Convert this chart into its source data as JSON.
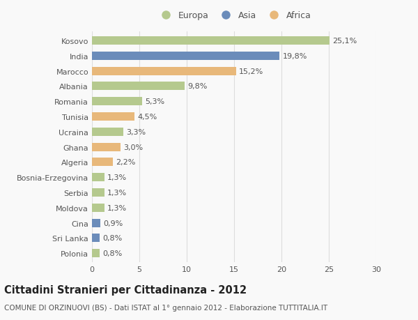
{
  "categories": [
    "Kosovo",
    "India",
    "Marocco",
    "Albania",
    "Romania",
    "Tunisia",
    "Ucraina",
    "Ghana",
    "Algeria",
    "Bosnia-Erzegovina",
    "Serbia",
    "Moldova",
    "Cina",
    "Sri Lanka",
    "Polonia"
  ],
  "values": [
    25.1,
    19.8,
    15.2,
    9.8,
    5.3,
    4.5,
    3.3,
    3.0,
    2.2,
    1.3,
    1.3,
    1.3,
    0.9,
    0.8,
    0.8
  ],
  "labels": [
    "25,1%",
    "19,8%",
    "15,2%",
    "9,8%",
    "5,3%",
    "4,5%",
    "3,3%",
    "3,0%",
    "2,2%",
    "1,3%",
    "1,3%",
    "1,3%",
    "0,9%",
    "0,8%",
    "0,8%"
  ],
  "continents": [
    "Europa",
    "Asia",
    "Africa",
    "Europa",
    "Europa",
    "Africa",
    "Europa",
    "Africa",
    "Africa",
    "Europa",
    "Europa",
    "Europa",
    "Asia",
    "Asia",
    "Europa"
  ],
  "colors": {
    "Europa": "#b5c98e",
    "Asia": "#6b8cba",
    "Africa": "#e8b87a"
  },
  "title_main": "Cittadini Stranieri per Cittadinanza - 2012",
  "title_sub": "COMUNE DI ORZINUOVI (BS) - Dati ISTAT al 1° gennaio 2012 - Elaborazione TUTTITALIA.IT",
  "xlim": [
    0,
    30
  ],
  "xticks": [
    0,
    5,
    10,
    15,
    20,
    25,
    30
  ],
  "background_color": "#f9f9f9",
  "grid_color": "#dddddd",
  "bar_height": 0.55,
  "label_fontsize": 8,
  "tick_fontsize": 8,
  "title_fontsize": 10.5,
  "subtitle_fontsize": 7.5,
  "legend_fontsize": 9
}
